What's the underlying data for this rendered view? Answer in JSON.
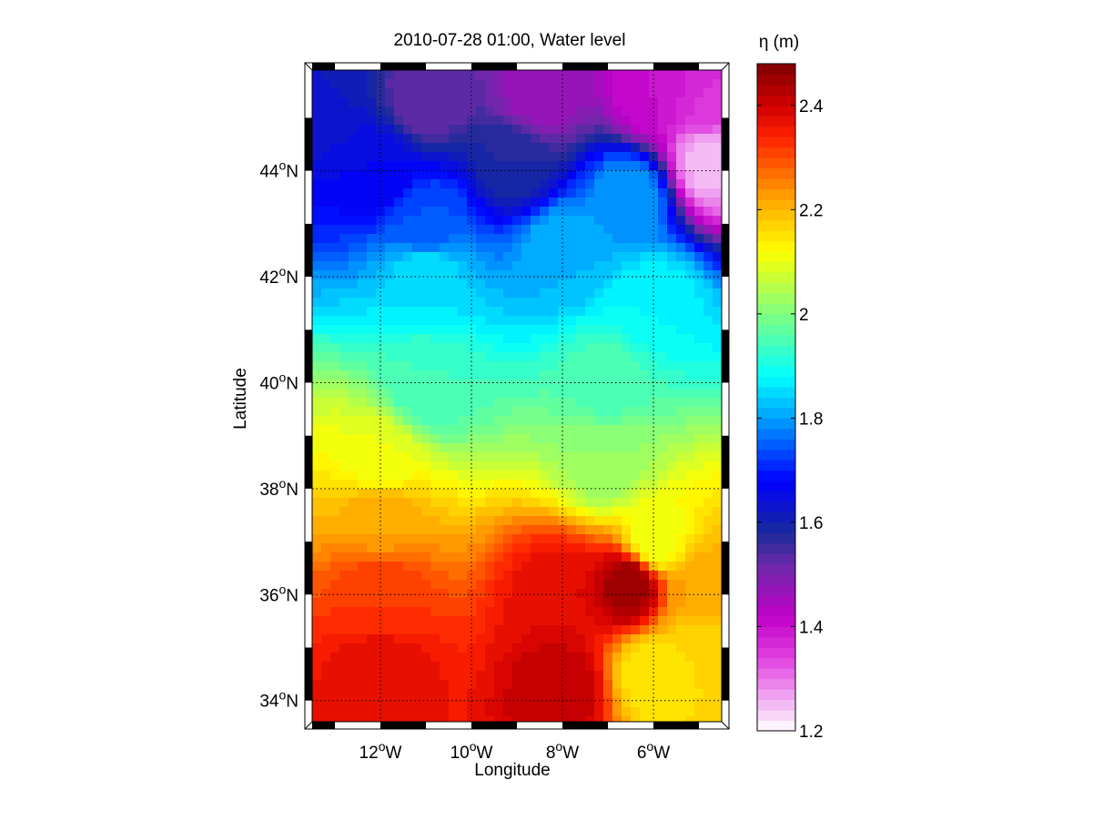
{
  "chart_data": {
    "type": "heatmap",
    "title": "2010-07-28 01:00, Water level",
    "xlabel": "Longitude",
    "ylabel": "Latitude",
    "x_range": [
      -13.5,
      -4.5
    ],
    "y_range": [
      33.6,
      45.9
    ],
    "x_ticks": [
      -12,
      -10,
      -8,
      -6
    ],
    "x_tick_labels": [
      "12°W",
      "10°W",
      "8°W",
      "6°W"
    ],
    "y_ticks": [
      34,
      36,
      38,
      40,
      42,
      44
    ],
    "y_tick_labels": [
      "34°N",
      "36°N",
      "38°N",
      "40°N",
      "42°N",
      "44°N"
    ],
    "grid": true,
    "colorbar": {
      "label": "η (m)",
      "range": [
        1.2,
        2.48
      ],
      "ticks": [
        1.2,
        1.4,
        1.6,
        1.8,
        2.0,
        2.2,
        2.4
      ],
      "tick_labels": [
        "1.2",
        "1.4",
        "1.6",
        "1.8",
        "2",
        "2.2",
        "2.4"
      ],
      "levels": 64,
      "colormap": "custom-jet-with-magenta",
      "colormap_stops": [
        {
          "value": 1.2,
          "color": "#ffffff"
        },
        {
          "value": 1.34,
          "color": "#e040e0"
        },
        {
          "value": 1.42,
          "color": "#c000c8"
        },
        {
          "value": 1.52,
          "color": "#6a2aa8"
        },
        {
          "value": 1.58,
          "color": "#1a2a9a"
        },
        {
          "value": 1.68,
          "color": "#0000ff"
        },
        {
          "value": 1.8,
          "color": "#00a0ff"
        },
        {
          "value": 1.88,
          "color": "#00ffff"
        },
        {
          "value": 2.0,
          "color": "#80ff80"
        },
        {
          "value": 2.12,
          "color": "#ffff00"
        },
        {
          "value": 2.22,
          "color": "#ffa500"
        },
        {
          "value": 2.34,
          "color": "#ff2000"
        },
        {
          "value": 2.4,
          "color": "#d00000"
        },
        {
          "value": 2.48,
          "color": "#800000"
        }
      ]
    },
    "field_samples": [
      {
        "lon": -13.3,
        "lat": 45.5,
        "eta": 1.62
      },
      {
        "lon": -11.0,
        "lat": 45.4,
        "eta": 1.52
      },
      {
        "lon": -8.5,
        "lat": 45.4,
        "eta": 1.46
      },
      {
        "lon": -6.0,
        "lat": 45.4,
        "eta": 1.4
      },
      {
        "lon": -4.8,
        "lat": 45.3,
        "eta": 1.36
      },
      {
        "lon": -4.8,
        "lat": 44.2,
        "eta": 1.25
      },
      {
        "lon": -12.0,
        "lat": 44.0,
        "eta": 1.66
      },
      {
        "lon": -9.0,
        "lat": 44.2,
        "eta": 1.58
      },
      {
        "lon": -6.5,
        "lat": 43.5,
        "eta": 1.8
      },
      {
        "lon": -11.0,
        "lat": 43.0,
        "eta": 1.74
      },
      {
        "lon": -8.0,
        "lat": 42.5,
        "eta": 1.82
      },
      {
        "lon": -11.0,
        "lat": 42.0,
        "eta": 1.86
      },
      {
        "lon": -6.0,
        "lat": 41.5,
        "eta": 1.88
      },
      {
        "lon": -11.0,
        "lat": 40.0,
        "eta": 1.94
      },
      {
        "lon": -7.0,
        "lat": 40.0,
        "eta": 1.95
      },
      {
        "lon": -12.0,
        "lat": 38.5,
        "eta": 2.1
      },
      {
        "lon": -7.0,
        "lat": 38.5,
        "eta": 2.02
      },
      {
        "lon": -12.0,
        "lat": 37.5,
        "eta": 2.22
      },
      {
        "lon": -6.0,
        "lat": 37.0,
        "eta": 2.1
      },
      {
        "lon": -12.0,
        "lat": 36.0,
        "eta": 2.32
      },
      {
        "lon": -8.0,
        "lat": 36.0,
        "eta": 2.38
      },
      {
        "lon": -6.5,
        "lat": 36.2,
        "eta": 2.46
      },
      {
        "lon": -5.0,
        "lat": 36.0,
        "eta": 2.22
      },
      {
        "lon": -12.0,
        "lat": 34.5,
        "eta": 2.38
      },
      {
        "lon": -8.0,
        "lat": 34.2,
        "eta": 2.42
      },
      {
        "lon": -6.0,
        "lat": 34.5,
        "eta": 2.14
      },
      {
        "lon": -5.0,
        "lat": 35.0,
        "eta": 2.16
      }
    ]
  }
}
